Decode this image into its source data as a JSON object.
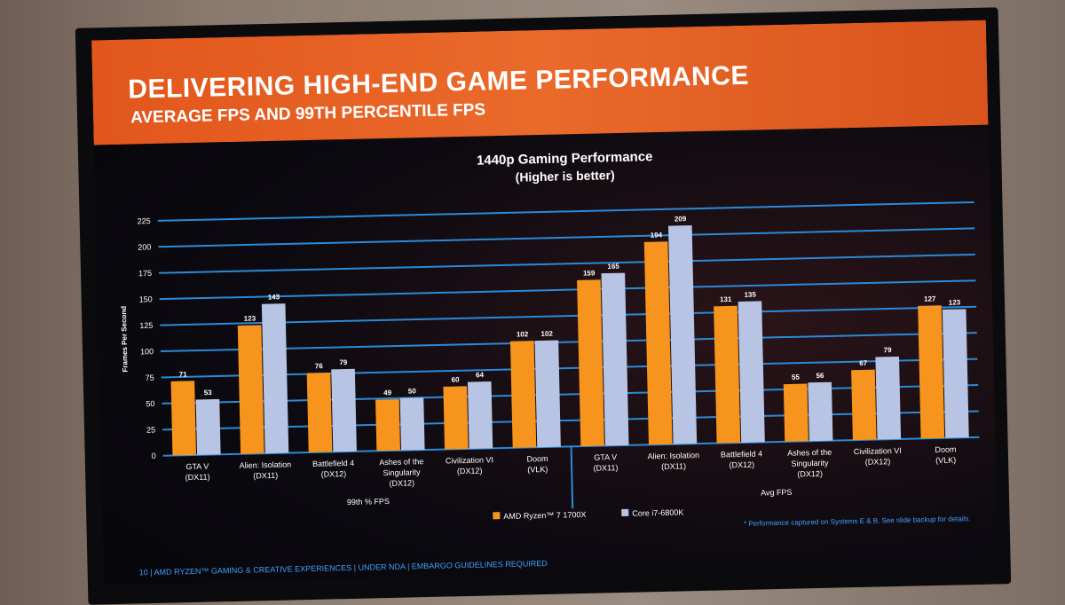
{
  "slide": {
    "title": "DELIVERING HIGH-END GAME PERFORMANCE",
    "subtitle": "AVERAGE FPS AND 99TH PERCENTILE FPS",
    "footnote": "* Performance captured on Systems E & B. See slide backup for details.",
    "footer": "10  |  AMD RYZEN™ GAMING & CREATIVE EXPERIENCES  |  UNDER NDA  |  EMBARGO GUIDELINES REQUIRED"
  },
  "colors": {
    "ryzen": "#f7941d",
    "intel": "#b8c4e4",
    "grid": "#2a8ad8",
    "text": "#ffffff"
  },
  "chart_data": {
    "type": "bar",
    "title": "1440p Gaming Performance",
    "subtitle": "(Higher is better)",
    "ylabel": "Frames Per Second",
    "ylim": [
      0,
      225
    ],
    "yticks": [
      0,
      25,
      50,
      75,
      100,
      125,
      150,
      175,
      200,
      225
    ],
    "grid": true,
    "legend_position": "bottom",
    "groups": [
      {
        "label": "99th % FPS",
        "categories": [
          "GTA V (DX11)",
          "Alien: Isolation (DX11)",
          "Battlefield 4 (DX12)",
          "Ashes of the Singularity (DX12)",
          "Civilization VI (DX12)",
          "Doom (VLK)"
        ],
        "series": [
          {
            "name": "AMD Ryzen™ 7 1700X",
            "values": [
              71,
              123,
              76,
              49,
              60,
              102
            ]
          },
          {
            "name": "Core i7-6800K",
            "values": [
              53,
              143,
              79,
              50,
              64,
              102
            ]
          }
        ]
      },
      {
        "label": "Avg FPS",
        "categories": [
          "GTA V (DX11)",
          "Alien: Isolation (DX11)",
          "Battlefield 4 (DX12)",
          "Ashes of the Singularity (DX12)",
          "Civilization VI (DX12)",
          "Doom (VLK)"
        ],
        "series": [
          {
            "name": "AMD Ryzen™ 7 1700X",
            "values": [
              159,
              194,
              131,
              55,
              67,
              127
            ]
          },
          {
            "name": "Core i7-6800K",
            "values": [
              165,
              209,
              135,
              56,
              79,
              123
            ]
          }
        ]
      }
    ],
    "legend": [
      "AMD Ryzen™ 7 1700X",
      "Core i7-6800K"
    ]
  }
}
